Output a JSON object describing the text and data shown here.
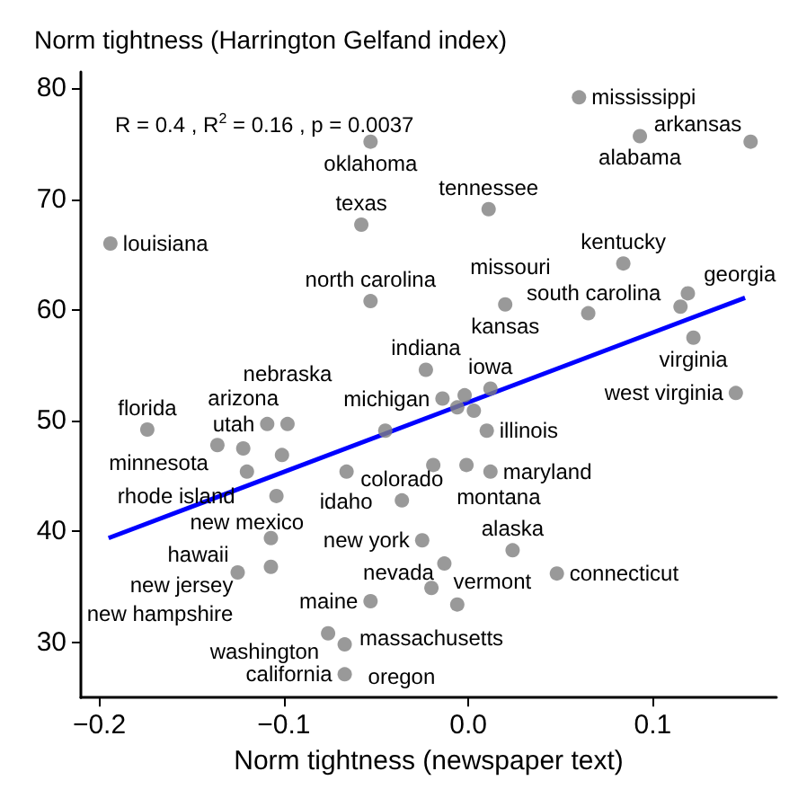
{
  "chart_data": {
    "type": "scatter",
    "ylabel": "Norm tightness (Harrington Gelfand index)",
    "xlabel": "Norm tightness (newspaper text)",
    "xlim": [
      -0.21,
      0.167
    ],
    "ylim": [
      25,
      81.5
    ],
    "xticks": [
      {
        "value": -0.2,
        "label": "−0.2"
      },
      {
        "value": -0.1,
        "label": "−0.1"
      },
      {
        "value": 0,
        "label": "0.0"
      },
      {
        "value": 0.1,
        "label": "0.1"
      }
    ],
    "yticks": [
      30,
      40,
      50,
      60,
      70,
      80
    ],
    "grid": false,
    "series": [
      {
        "marker": "circle",
        "color": "#808080",
        "x": [
          0.06,
          0.093,
          0.153,
          -0.053,
          -0.058,
          -0.194,
          0.011,
          0.084,
          0.119,
          0.115,
          0.122,
          0.02,
          0.065,
          -0.053,
          -0.023,
          0.145,
          0.012,
          -0.002,
          -0.014,
          -0.006,
          0.003,
          0.01,
          -0.019,
          -0.001,
          0.012,
          -0.025,
          -0.013,
          -0.02,
          -0.006,
          0.024,
          0.048,
          -0.174,
          -0.136,
          -0.122,
          -0.109,
          -0.098,
          -0.101,
          -0.12,
          -0.104,
          -0.066,
          -0.045,
          -0.036,
          -0.107,
          -0.107,
          -0.125,
          -0.053,
          -0.076,
          -0.067,
          -0.067
        ],
        "values": [
          79.2,
          75.7,
          75.2,
          75.2,
          67.7,
          66,
          69.1,
          64.2,
          61.5,
          60.3,
          57.5,
          60.5,
          59.7,
          60.8,
          54.6,
          52.5,
          52.9,
          52.3,
          52,
          51.2,
          50.9,
          49.1,
          46,
          46,
          45.4,
          39.2,
          37.1,
          34.9,
          33.4,
          38.3,
          36.2,
          49.2,
          47.8,
          47.5,
          49.7,
          49.7,
          46.9,
          45.4,
          43.2,
          45.4,
          49.1,
          42.8,
          39.4,
          36.8,
          36.3,
          33.7,
          30.8,
          29.8,
          27.1
        ]
      },
      {
        "type": "line",
        "color": "#0000ff",
        "x": [
          -0.195,
          0.15
        ],
        "values": [
          39.4,
          61.1
        ]
      }
    ],
    "annotations": [
      "R = 0.4 , R$^{2}$ = 0.16 , p = 0.0037",
      {
        "text": "mississippi",
        "x": 0.06,
        "y": 79.2
      },
      {
        "text": "alabama",
        "x": 0.093,
        "y": 75.7
      },
      {
        "text": "arkansas",
        "x": 0.153,
        "y": 75.2
      },
      {
        "text": "oklahoma",
        "x": -0.053,
        "y": 75.2
      },
      {
        "text": "texas",
        "x": -0.058,
        "y": 67.7
      },
      {
        "text": "louisiana",
        "x": -0.194,
        "y": 66
      },
      {
        "text": "tennessee",
        "x": 0.011,
        "y": 69.1
      },
      {
        "text": "kentucky",
        "x": 0.084,
        "y": 64.2
      },
      {
        "text": "south carolina",
        "x": 0.119,
        "y": 61.5
      },
      {
        "text": "georgia",
        "x": 0.115,
        "y": 60.3
      },
      {
        "text": "virginia",
        "x": 0.122,
        "y": 57.5
      },
      {
        "text": "kansas",
        "x": 0.02,
        "y": 60.5
      },
      {
        "text": "missouri",
        "x": 0.065,
        "y": 59.7
      },
      {
        "text": "north carolina",
        "x": -0.053,
        "y": 60.8
      },
      {
        "text": "indiana",
        "x": -0.023,
        "y": 54.6
      },
      {
        "text": "west virginia",
        "x": 0.145,
        "y": 52.5
      },
      {
        "text": "iowa",
        "x": 0.012,
        "y": 52.9
      },
      {
        "text": "michigan",
        "x": -0.014,
        "y": 52
      },
      {
        "text": "illinois",
        "x": 0.01,
        "y": 49.1
      },
      {
        "text": "montana",
        "x": -0.019,
        "y": 46
      },
      {
        "text": "maryland",
        "x": 0.012,
        "y": 45.4
      },
      {
        "text": "new york",
        "x": -0.025,
        "y": 39.2
      },
      {
        "text": "vermont",
        "x": -0.013,
        "y": 37.1
      },
      {
        "text": "massachusetts",
        "x": -0.02,
        "y": 34.9
      },
      {
        "text": "nevada",
        "x": -0.006,
        "y": 33.4
      },
      {
        "text": "alaska",
        "x": 0.024,
        "y": 38.3
      },
      {
        "text": "connecticut",
        "x": 0.048,
        "y": 36.2
      },
      {
        "text": "florida",
        "x": -0.174,
        "y": 49.2
      },
      {
        "text": "minnesota",
        "x": -0.136,
        "y": 47.8
      },
      {
        "text": "arizona",
        "x": -0.122,
        "y": 47.5
      },
      {
        "text": "utah",
        "x": -0.109,
        "y": 49.7
      },
      {
        "text": "nebraska",
        "x": -0.098,
        "y": 49.7
      },
      {
        "text": "idaho",
        "x": -0.101,
        "y": 46.9
      },
      {
        "text": "new mexico",
        "x": -0.12,
        "y": 45.4
      },
      {
        "text": "colorado",
        "x": -0.036,
        "y": 42.8
      },
      {
        "text": "rhode island",
        "x": -0.104,
        "y": 43.2
      },
      {
        "text": "new jersey",
        "x": -0.107,
        "y": 39.4
      },
      {
        "text": "new hampshire",
        "x": -0.107,
        "y": 36.8
      },
      {
        "text": "hawaii",
        "x": -0.125,
        "y": 36.3
      },
      {
        "text": "maine",
        "x": -0.053,
        "y": 33.7
      },
      {
        "text": "washington",
        "x": -0.076,
        "y": 30.8
      },
      {
        "text": "oregon",
        "x": -0.067,
        "y": 29.8
      },
      {
        "text": "california",
        "x": -0.067,
        "y": 27.1
      }
    ]
  }
}
